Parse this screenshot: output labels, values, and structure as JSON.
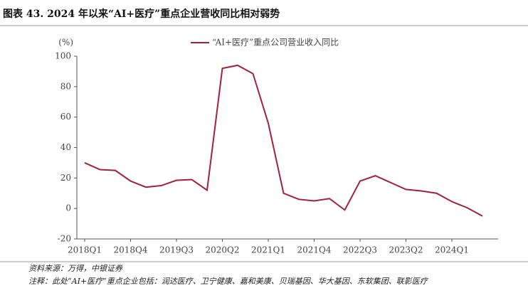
{
  "chart_data": {
    "type": "line",
    "title": "图表 43. 2024 年以来“AI+医疗”重点企业营收同比相对弱势",
    "y_unit_label": "(%)",
    "categories": [
      "2018Q1",
      null,
      null,
      "2018Q4",
      null,
      null,
      "2019Q3",
      null,
      null,
      "2020Q2",
      null,
      null,
      "2021Q1",
      null,
      null,
      "2021Q4",
      null,
      null,
      "2022Q3",
      null,
      null,
      "2023Q2",
      null,
      null,
      "2024Q1",
      null,
      null
    ],
    "series": [
      {
        "name": "“AI+医疗”重点公司营业收入同比",
        "color": "#a3203a",
        "values": [
          30,
          25.5,
          25,
          18,
          14,
          15,
          18.5,
          19,
          12,
          92,
          94,
          88.5,
          56,
          10,
          6,
          5,
          6.5,
          -1,
          18,
          21.5,
          17,
          12.5,
          11.5,
          10,
          4.5,
          0.5,
          -5
        ]
      }
    ],
    "ylim": [
      -20,
      100
    ],
    "yticks": [
      -20,
      0,
      20,
      40,
      60,
      80,
      100
    ],
    "grid": false,
    "legend": "top",
    "source": "资料来源：万得，中银证券",
    "note": "注释：此处“AI+医疗”重点企业包括：润达医疗、卫宁健康、嘉和美康、贝瑞基因、华大基因、东软集团、联影医疗"
  }
}
